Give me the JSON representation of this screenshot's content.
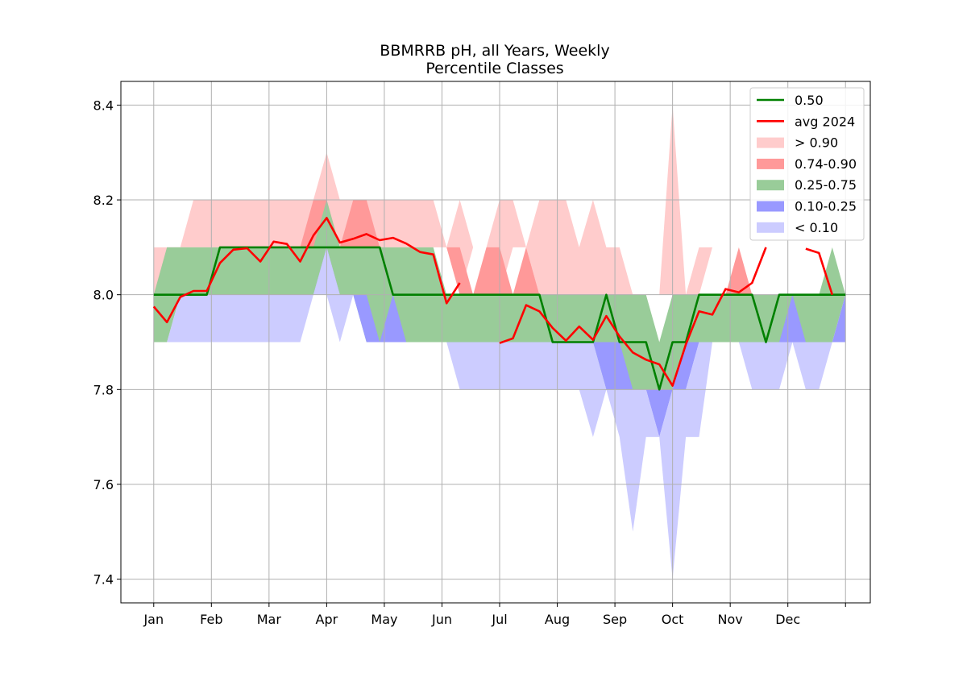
{
  "chart_data": {
    "type": "area",
    "title": "BBMRRB pH, all Years, Weekly",
    "subtitle": "Percentile Classes",
    "xlabel": "",
    "ylabel": "",
    "x_ticks": [
      "Jan",
      "Feb",
      "Mar",
      "Apr",
      "May",
      "Jun",
      "Jul",
      "Aug",
      "Sep",
      "Oct",
      "Nov",
      "Dec",
      ""
    ],
    "x_range": [
      0.43,
      13.43
    ],
    "ylim": [
      7.35,
      8.45
    ],
    "y_ticks": [
      7.4,
      7.6,
      7.8,
      8.0,
      8.2,
      8.4
    ],
    "grid": true,
    "legend_position": "top-right",
    "x": [
      1.0,
      1.23,
      1.46,
      1.69,
      1.92,
      2.15,
      2.38,
      2.62,
      2.85,
      3.08,
      3.31,
      3.54,
      3.77,
      4.0,
      4.23,
      4.46,
      4.69,
      4.92,
      5.15,
      5.38,
      5.62,
      5.85,
      6.08,
      6.31,
      6.54,
      6.77,
      7.0,
      7.23,
      7.46,
      7.69,
      7.92,
      8.15,
      8.38,
      8.62,
      8.85,
      9.08,
      9.31,
      9.54,
      9.77,
      10.0,
      10.23,
      10.46,
      10.69,
      10.92,
      11.15,
      11.38,
      11.62,
      11.85,
      12.08,
      12.31,
      12.54,
      12.77,
      13.0
    ],
    "bands": [
      {
        "name": "> 0.90",
        "color": "#ffcccc",
        "lower": [
          8.0,
          8.1,
          8.1,
          8.1,
          8.1,
          8.1,
          8.1,
          8.1,
          8.1,
          8.1,
          8.1,
          8.1,
          8.1,
          8.1,
          8.1,
          8.1,
          8.1,
          8.1,
          8.1,
          8.1,
          8.1,
          8.1,
          8.1,
          8.0,
          8.1,
          8.1,
          8.0,
          8.1,
          8.1,
          8.0,
          8.0,
          8.0,
          8.0,
          8.0,
          8.0,
          8.0,
          8.0,
          8.0,
          8.0,
          8.0,
          8.0,
          8.0,
          8.1,
          8.1,
          8.1,
          8.1,
          8.1,
          8.1,
          8.1,
          8.1,
          8.1,
          8.1,
          8.1
        ],
        "upper": [
          8.1,
          8.1,
          8.1,
          8.2,
          8.2,
          8.2,
          8.2,
          8.2,
          8.2,
          8.2,
          8.2,
          8.2,
          8.2,
          8.3,
          8.2,
          8.2,
          8.2,
          8.2,
          8.2,
          8.2,
          8.2,
          8.2,
          8.1,
          8.2,
          8.1,
          8.1,
          8.2,
          8.2,
          8.1,
          8.2,
          8.2,
          8.2,
          8.1,
          8.2,
          8.1,
          8.1,
          8.0,
          8.0,
          8.0,
          8.4,
          8.0,
          8.1,
          8.1,
          8.1,
          8.1,
          8.1,
          8.1,
          8.1,
          8.1,
          8.1,
          8.1,
          8.1,
          8.1
        ]
      },
      {
        "name": "0.74-0.90",
        "color": "#ff9999",
        "lower": [
          8.0,
          8.0,
          8.1,
          8.1,
          8.1,
          8.1,
          8.1,
          8.1,
          8.1,
          8.1,
          8.1,
          8.1,
          8.1,
          8.1,
          8.1,
          8.1,
          8.1,
          8.1,
          8.1,
          8.1,
          8.1,
          8.1,
          8.1,
          8.0,
          8.0,
          8.0,
          8.0,
          8.0,
          8.0,
          8.0,
          8.0,
          8.0,
          8.0,
          8.0,
          8.0,
          8.0,
          8.0,
          8.0,
          8.0,
          8.0,
          8.0,
          8.0,
          8.0,
          8.0,
          8.0,
          8.0,
          8.0,
          8.0,
          8.0,
          8.0,
          8.0,
          8.0,
          8.0
        ],
        "upper": [
          8.0,
          8.1,
          8.1,
          8.1,
          8.1,
          8.1,
          8.1,
          8.1,
          8.1,
          8.1,
          8.1,
          8.1,
          8.2,
          8.2,
          8.1,
          8.2,
          8.2,
          8.1,
          8.1,
          8.1,
          8.1,
          8.1,
          8.1,
          8.1,
          8.0,
          8.1,
          8.1,
          8.0,
          8.1,
          8.0,
          8.0,
          8.0,
          8.0,
          8.0,
          8.0,
          8.0,
          8.0,
          8.0,
          8.0,
          8.0,
          8.0,
          8.0,
          8.0,
          8.0,
          8.1,
          8.0,
          8.0,
          8.0,
          8.0,
          8.0,
          8.0,
          8.0,
          8.0
        ]
      },
      {
        "name": "0.25-0.75",
        "color": "#99cc99",
        "lower": [
          7.9,
          7.9,
          8.0,
          8.0,
          8.0,
          8.0,
          8.0,
          8.0,
          8.0,
          8.0,
          8.0,
          8.0,
          8.0,
          8.1,
          8.0,
          8.0,
          7.9,
          7.9,
          7.9,
          7.9,
          7.9,
          7.9,
          7.9,
          7.9,
          7.9,
          7.9,
          7.9,
          7.9,
          7.9,
          7.9,
          7.9,
          7.9,
          7.9,
          7.9,
          7.8,
          7.8,
          7.8,
          7.8,
          7.8,
          7.8,
          7.9,
          7.9,
          7.9,
          7.9,
          7.9,
          7.9,
          7.9,
          7.9,
          7.9,
          7.9,
          7.9,
          7.9,
          8.0
        ],
        "upper": [
          8.0,
          8.1,
          8.1,
          8.1,
          8.1,
          8.1,
          8.1,
          8.1,
          8.1,
          8.1,
          8.1,
          8.1,
          8.1,
          8.2,
          8.1,
          8.1,
          8.1,
          8.1,
          8.1,
          8.1,
          8.1,
          8.1,
          8.0,
          8.0,
          8.0,
          8.0,
          8.0,
          8.0,
          8.0,
          8.0,
          8.0,
          8.0,
          8.0,
          8.0,
          8.0,
          8.0,
          8.0,
          8.0,
          7.9,
          8.0,
          8.0,
          8.0,
          8.0,
          8.0,
          8.0,
          8.0,
          8.0,
          8.0,
          8.0,
          8.0,
          8.0,
          8.1,
          8.0
        ]
      },
      {
        "name": "0.10-0.25",
        "color": "#9999ff",
        "lower": [
          7.9,
          7.9,
          8.0,
          8.0,
          8.0,
          8.0,
          8.0,
          8.0,
          8.0,
          8.0,
          8.0,
          8.0,
          8.0,
          8.0,
          8.0,
          8.0,
          7.9,
          7.9,
          7.9,
          7.9,
          7.9,
          7.9,
          7.9,
          7.9,
          7.9,
          7.9,
          7.9,
          7.9,
          7.9,
          7.9,
          7.9,
          7.9,
          7.9,
          7.9,
          7.8,
          7.8,
          7.8,
          7.8,
          7.7,
          7.8,
          7.8,
          7.9,
          7.9,
          7.9,
          7.9,
          7.9,
          7.9,
          7.9,
          7.9,
          7.9,
          7.9,
          7.9,
          7.9
        ],
        "upper": [
          7.9,
          7.9,
          8.0,
          8.0,
          8.0,
          8.0,
          8.0,
          8.0,
          8.0,
          8.0,
          8.0,
          8.0,
          8.0,
          8.1,
          8.0,
          8.0,
          8.0,
          7.9,
          8.0,
          7.9,
          7.9,
          7.9,
          7.9,
          7.9,
          7.9,
          7.9,
          7.9,
          7.9,
          7.9,
          7.9,
          7.9,
          7.9,
          7.9,
          7.9,
          7.9,
          7.9,
          7.8,
          7.8,
          7.8,
          7.8,
          7.9,
          7.9,
          7.9,
          7.9,
          7.9,
          7.9,
          7.9,
          7.9,
          8.0,
          7.9,
          7.9,
          7.9,
          8.0
        ]
      },
      {
        "name": "< 0.10",
        "color": "#ccccff",
        "lower": [
          7.9,
          7.9,
          7.9,
          7.9,
          7.9,
          7.9,
          7.9,
          7.9,
          7.9,
          7.9,
          7.9,
          7.9,
          8.0,
          8.0,
          7.9,
          8.0,
          7.9,
          7.9,
          7.9,
          7.9,
          7.9,
          7.9,
          7.9,
          7.8,
          7.8,
          7.8,
          7.8,
          7.8,
          7.8,
          7.8,
          7.8,
          7.8,
          7.8,
          7.7,
          7.8,
          7.7,
          7.5,
          7.7,
          7.7,
          7.4,
          7.7,
          7.7,
          7.9,
          7.9,
          7.9,
          7.8,
          7.8,
          7.8,
          7.9,
          7.8,
          7.8,
          7.9,
          7.9
        ],
        "upper": [
          7.9,
          7.9,
          8.0,
          8.0,
          8.0,
          8.0,
          8.0,
          8.0,
          8.0,
          8.0,
          8.0,
          8.0,
          8.0,
          8.1,
          8.0,
          8.0,
          7.9,
          7.9,
          7.9,
          7.9,
          7.9,
          7.9,
          7.9,
          7.9,
          7.9,
          7.9,
          7.9,
          7.9,
          7.9,
          7.9,
          7.9,
          7.9,
          7.9,
          7.9,
          7.8,
          7.8,
          7.8,
          7.8,
          7.7,
          7.8,
          7.8,
          7.9,
          7.9,
          7.9,
          7.9,
          7.9,
          7.9,
          7.9,
          7.9,
          7.9,
          7.9,
          7.9,
          7.9
        ]
      }
    ],
    "series": [
      {
        "name": "0.50",
        "color": "#008000",
        "values": [
          8.0,
          8.0,
          8.0,
          8.0,
          8.0,
          8.1,
          8.1,
          8.1,
          8.1,
          8.1,
          8.1,
          8.1,
          8.1,
          8.1,
          8.1,
          8.1,
          8.1,
          8.1,
          8.0,
          8.0,
          8.0,
          8.0,
          8.0,
          8.0,
          8.0,
          8.0,
          8.0,
          8.0,
          8.0,
          8.0,
          7.9,
          7.9,
          7.9,
          7.9,
          8.0,
          7.9,
          7.9,
          7.9,
          7.8,
          7.9,
          7.9,
          8.0,
          8.0,
          8.0,
          8.0,
          8.0,
          7.9,
          8.0,
          8.0,
          8.0,
          8.0,
          8.0,
          8.0
        ]
      },
      {
        "name": "avg 2024",
        "color": "#ff0000",
        "values": [
          7.975,
          7.942,
          7.995,
          8.008,
          8.008,
          8.067,
          8.095,
          8.098,
          8.07,
          8.112,
          8.107,
          8.07,
          8.125,
          8.162,
          8.11,
          8.118,
          8.128,
          8.115,
          8.12,
          8.108,
          8.09,
          8.085,
          7.982,
          8.025,
          null,
          null,
          7.898,
          7.908,
          7.978,
          7.965,
          7.93,
          7.903,
          7.933,
          7.905,
          7.955,
          7.912,
          7.878,
          7.863,
          7.853,
          7.808,
          7.895,
          7.965,
          7.958,
          8.012,
          8.005,
          8.025,
          8.1,
          null,
          null,
          8.097,
          8.088,
          8.0,
          null
        ]
      }
    ]
  }
}
